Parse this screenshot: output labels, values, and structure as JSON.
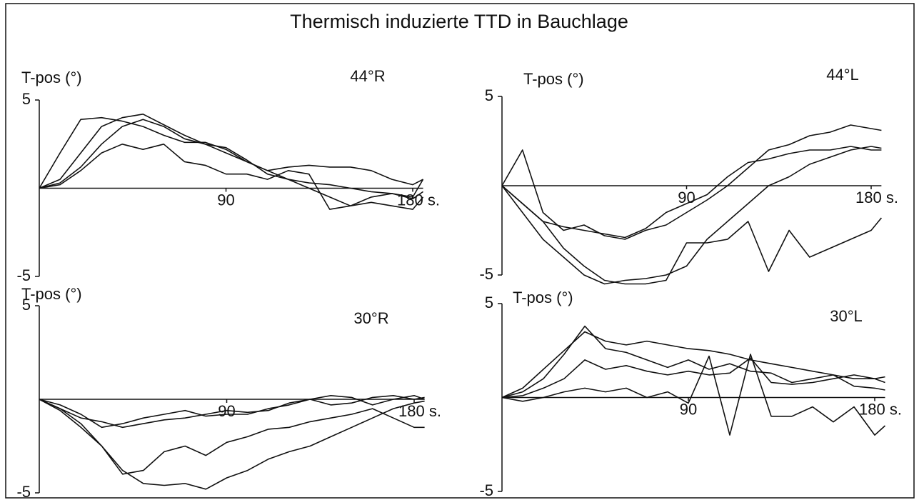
{
  "title": "Thermisch induzierte TTD  in Bauchlage",
  "chart_data": [
    {
      "type": "line",
      "title": "44°R",
      "ylabel": "T-pos (°)",
      "x": [
        0,
        10,
        20,
        30,
        40,
        50,
        60,
        70,
        80,
        90,
        100,
        110,
        120,
        130,
        140,
        150,
        160,
        170,
        180,
        185
      ],
      "xlim": [
        0,
        185
      ],
      "ylim": [
        -5,
        5
      ],
      "xticks": [
        90,
        {
          "value": 180,
          "label": "180 s."
        }
      ],
      "yticks": [
        -5,
        5
      ],
      "series": [
        {
          "color": "#111",
          "values": [
            0,
            2,
            3.9,
            4,
            3.8,
            3.5,
            3,
            2.6,
            2.6,
            2.2,
            1.5,
            1,
            1.2,
            1.3,
            1.2,
            1.2,
            1,
            0.5,
            0.2,
            0.5
          ]
        },
        {
          "color": "#111",
          "values": [
            0,
            0.5,
            2,
            3.5,
            4,
            4.2,
            3.6,
            3,
            2.5,
            2,
            1.5,
            1,
            0.5,
            0,
            -0.5,
            -1,
            -0.5,
            -0.3,
            -0.5,
            0.5
          ]
        },
        {
          "color": "#111",
          "values": [
            0,
            0.3,
            1.2,
            2.5,
            3.5,
            3.9,
            3.5,
            2.8,
            2.5,
            2.3,
            1.6,
            0.8,
            0.5,
            0.3,
            0.2,
            0,
            -0.2,
            -0.3,
            -0.6,
            -0.2
          ]
        },
        {
          "color": "#111",
          "values": [
            0,
            0.2,
            1,
            2,
            2.5,
            2.2,
            2.5,
            1.5,
            1.3,
            0.8,
            0.8,
            0.5,
            1,
            0.8,
            -1.2,
            -1,
            -0.8,
            -1,
            -1.2,
            -0.5
          ]
        }
      ]
    },
    {
      "type": "line",
      "title": "44°L",
      "ylabel": "T-pos (°)",
      "x": [
        0,
        10,
        20,
        30,
        40,
        50,
        60,
        70,
        80,
        90,
        100,
        110,
        120,
        130,
        140,
        150,
        160,
        170,
        180,
        185
      ],
      "xlim": [
        0,
        185
      ],
      "ylim": [
        -5,
        5
      ],
      "xticks": [
        90,
        {
          "value": 180,
          "label": "180 s."
        }
      ],
      "yticks": [
        -5,
        5
      ],
      "series": [
        {
          "color": "#111",
          "values": [
            0,
            2,
            -1.5,
            -2.5,
            -2.2,
            -2.8,
            -3,
            -2.5,
            -2.2,
            -1.5,
            -0.8,
            0,
            1,
            2,
            2.3,
            2.8,
            3,
            3.4,
            3.2,
            3.1
          ]
        },
        {
          "color": "#111",
          "values": [
            0,
            -1,
            -2,
            -2.3,
            -2.5,
            -2.7,
            -2.9,
            -2.4,
            -1.5,
            -1,
            -0.5,
            0.5,
            1.3,
            1.5,
            1.8,
            2,
            2,
            2.2,
            2,
            2
          ]
        },
        {
          "color": "#111",
          "values": [
            0,
            -1.5,
            -3,
            -4,
            -5,
            -5.5,
            -5.3,
            -5.2,
            -5,
            -4.5,
            -3,
            -2,
            -1,
            0,
            0.5,
            1.2,
            1.6,
            2,
            2.2,
            2.1
          ]
        },
        {
          "color": "#111",
          "values": [
            0,
            -1,
            -2,
            -3.5,
            -4.5,
            -5.3,
            -5.5,
            -5.5,
            -5.3,
            -3.2,
            -3.2,
            -3,
            -2,
            -4.8,
            -2.5,
            -4,
            -3.5,
            -3,
            -2.5,
            -1.8
          ]
        }
      ]
    },
    {
      "type": "line",
      "title": "30°R",
      "ylabel": "T-pos (°)",
      "x": [
        0,
        10,
        20,
        30,
        40,
        50,
        60,
        70,
        80,
        90,
        100,
        110,
        120,
        130,
        140,
        150,
        160,
        170,
        180,
        185
      ],
      "xlim": [
        0,
        185
      ],
      "ylim": [
        -5,
        5
      ],
      "xticks": [
        90,
        {
          "value": 180,
          "label": "180 s."
        }
      ],
      "yticks": [
        -5,
        5
      ],
      "series": [
        {
          "color": "#111",
          "values": [
            0,
            -0.3,
            -0.8,
            -1.5,
            -1.3,
            -1,
            -0.8,
            -0.6,
            -0.9,
            -0.8,
            -0.8,
            -0.5,
            -0.3,
            0,
            0.2,
            0.1,
            -0.3,
            0,
            0.2,
            0
          ]
        },
        {
          "color": "#111",
          "values": [
            0,
            -0.5,
            -1,
            -1.2,
            -1.5,
            -1.3,
            -1.1,
            -1,
            -0.8,
            -0.6,
            -0.7,
            -0.6,
            -0.2,
            0,
            -0.3,
            -0.2,
            0.1,
            0.2,
            0,
            0.1
          ]
        },
        {
          "color": "#111",
          "values": [
            0,
            -0.6,
            -1.5,
            -2.5,
            -4,
            -3.8,
            -2.8,
            -2.5,
            -3,
            -2.3,
            -2,
            -1.6,
            -1.5,
            -1.2,
            -1,
            -0.8,
            -0.5,
            -1,
            -1.5,
            -1.5
          ]
        },
        {
          "color": "#111",
          "values": [
            0,
            -0.5,
            -1.3,
            -2.5,
            -3.8,
            -4.5,
            -4.6,
            -4.5,
            -4.8,
            -4.2,
            -3.8,
            -3.2,
            -2.8,
            -2.5,
            -2,
            -1.5,
            -1,
            -0.5,
            -0.2,
            -0.1
          ]
        }
      ]
    },
    {
      "type": "line",
      "title": "30°L",
      "ylabel": "T-pos (°)",
      "x": [
        0,
        10,
        20,
        30,
        40,
        50,
        60,
        70,
        80,
        90,
        100,
        110,
        120,
        130,
        140,
        150,
        160,
        170,
        180,
        185
      ],
      "xlim": [
        0,
        185
      ],
      "ylim": [
        -5,
        5
      ],
      "xticks": [
        90,
        {
          "value": 180,
          "label": "180 s."
        }
      ],
      "yticks": [
        -5,
        5
      ],
      "series": [
        {
          "color": "#111",
          "values": [
            0,
            0.5,
            1.5,
            2.5,
            3.5,
            3,
            2.8,
            3,
            2.8,
            2.6,
            2.5,
            2.3,
            2,
            1.8,
            1.6,
            1.4,
            1.2,
            1,
            1,
            1.1
          ]
        },
        {
          "color": "#111",
          "values": [
            0,
            0.3,
            1,
            2.3,
            3.8,
            2.6,
            2.4,
            2,
            1.6,
            2,
            1.5,
            1.8,
            1.4,
            1.3,
            0.8,
            1,
            1.2,
            0.6,
            0.5,
            0.4
          ]
        },
        {
          "color": "#111",
          "values": [
            0,
            0.1,
            0.5,
            1,
            2,
            1.5,
            1.7,
            1.4,
            1.2,
            1.4,
            1.2,
            1.3,
            2.1,
            0.8,
            0.7,
            0.8,
            1,
            1.2,
            1,
            0.8
          ]
        },
        {
          "color": "#111",
          "values": [
            0,
            -0.2,
            0,
            0.3,
            0.5,
            0.3,
            0.5,
            0,
            0.3,
            -0.3,
            2.2,
            -2,
            2.3,
            -1,
            -1,
            -0.5,
            -1.3,
            -0.5,
            -2,
            -1.5
          ]
        }
      ]
    }
  ]
}
